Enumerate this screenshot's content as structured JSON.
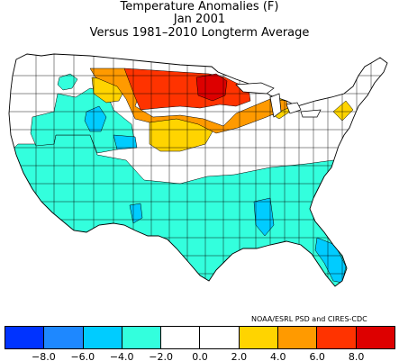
{
  "title": {
    "line1": "Temperature Anomalies (F)",
    "line2": "Jan 2001",
    "line3": "Versus 1981–2010 Longterm Average"
  },
  "credit": "NOAA/ESRL PSD and CIRES-CDC",
  "legend": {
    "colors": [
      "#0033ff",
      "#1e88ff",
      "#00ccff",
      "#33ffdd",
      "#ffffff",
      "#ffffff",
      "#ffd400",
      "#ff9a00",
      "#ff3300",
      "#dd0000"
    ],
    "ticks": [
      "−8.0",
      "−6.0",
      "−4.0",
      "−2.0",
      "0.0",
      "2.0",
      "4.0",
      "6.0",
      "8.0"
    ]
  },
  "colors": {
    "land": "#ffffff",
    "border": "#000000",
    "cyan": "#33ffdd",
    "lightblue": "#00ccff",
    "yellow": "#ffd400",
    "orange": "#ff9a00",
    "red": "#ff3300",
    "darkred": "#dd0000"
  }
}
